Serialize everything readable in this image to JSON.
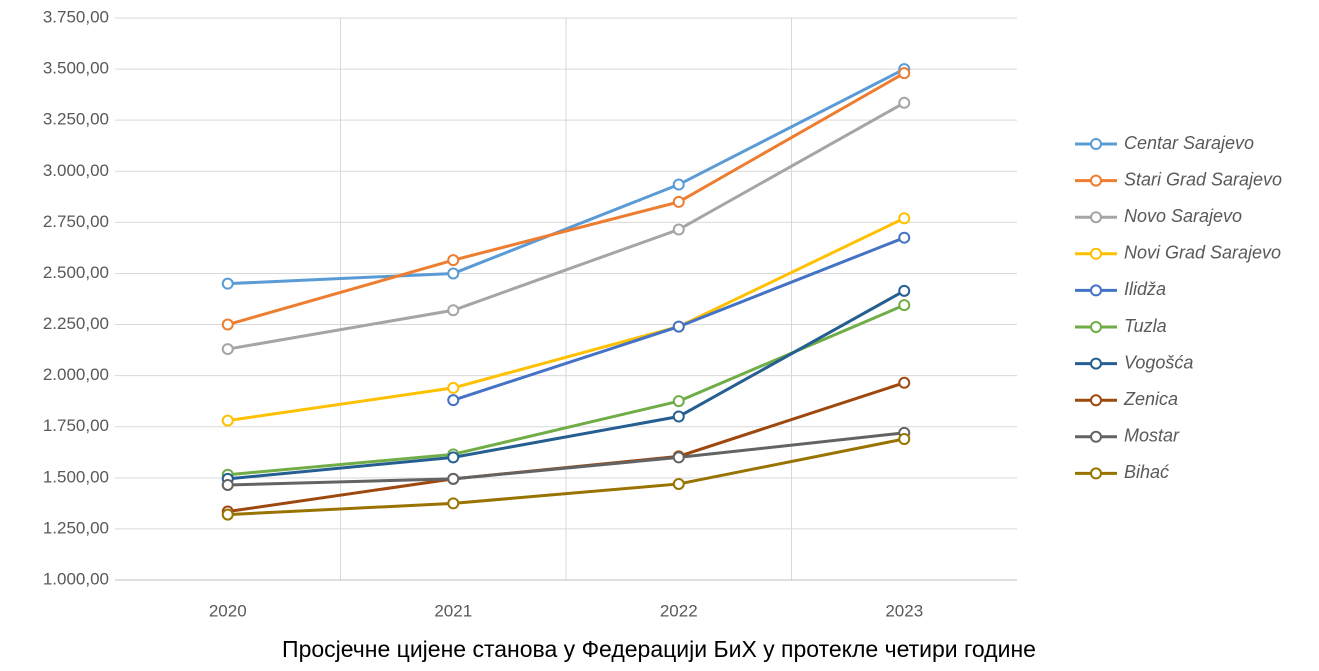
{
  "chart_data": {
    "type": "line",
    "title": "Просјечне цијене станова у Федерацији БиХ у протекле четири године",
    "categories": [
      "2020",
      "2021",
      "2022",
      "2023"
    ],
    "series": [
      {
        "name": "Centar Sarajevo",
        "color": "#5b9bd5",
        "values": [
          2450,
          2500,
          2935,
          3500
        ]
      },
      {
        "name": "Stari Grad Sarajevo",
        "color": "#ed7d31",
        "values": [
          2250,
          2565,
          2850,
          3480
        ]
      },
      {
        "name": "Novo Sarajevo",
        "color": "#a5a5a5",
        "values": [
          2130,
          2320,
          2715,
          3335
        ]
      },
      {
        "name": "Novi Grad Sarajevo",
        "color": "#ffc000",
        "values": [
          1780,
          1940,
          2240,
          2770
        ]
      },
      {
        "name": "Ilidža",
        "color": "#4472c4",
        "values": [
          null,
          1880,
          2240,
          2675
        ]
      },
      {
        "name": "Tuzla",
        "color": "#70ad47",
        "values": [
          1515,
          1615,
          1875,
          2345
        ]
      },
      {
        "name": "Vogošća",
        "color": "#255e91",
        "values": [
          1495,
          1600,
          1800,
          2415
        ]
      },
      {
        "name": "Zenica",
        "color": "#9e480e",
        "values": [
          1335,
          1495,
          1605,
          1965
        ]
      },
      {
        "name": "Mostar",
        "color": "#636363",
        "values": [
          1465,
          1495,
          1600,
          1720
        ]
      },
      {
        "name": "Bihać",
        "color": "#997300",
        "values": [
          1320,
          1375,
          1470,
          1690
        ]
      }
    ],
    "ylim": [
      1000,
      3750
    ],
    "yticks": [
      {
        "value": 1000,
        "label": "1.000,00"
      },
      {
        "value": 1250,
        "label": "1.250,00"
      },
      {
        "value": 1500,
        "label": "1.500,00"
      },
      {
        "value": 1750,
        "label": "1.750,00"
      },
      {
        "value": 2000,
        "label": "2.000,00"
      },
      {
        "value": 2250,
        "label": "2.250,00"
      },
      {
        "value": 2500,
        "label": "2.500,00"
      },
      {
        "value": 2750,
        "label": "2.750,00"
      },
      {
        "value": 3000,
        "label": "3.000,00"
      },
      {
        "value": 3250,
        "label": "3.250,00"
      },
      {
        "value": 3500,
        "label": "3.500,00"
      },
      {
        "value": 3750,
        "label": "3.750,00"
      }
    ],
    "grid": true,
    "legend": "right"
  }
}
